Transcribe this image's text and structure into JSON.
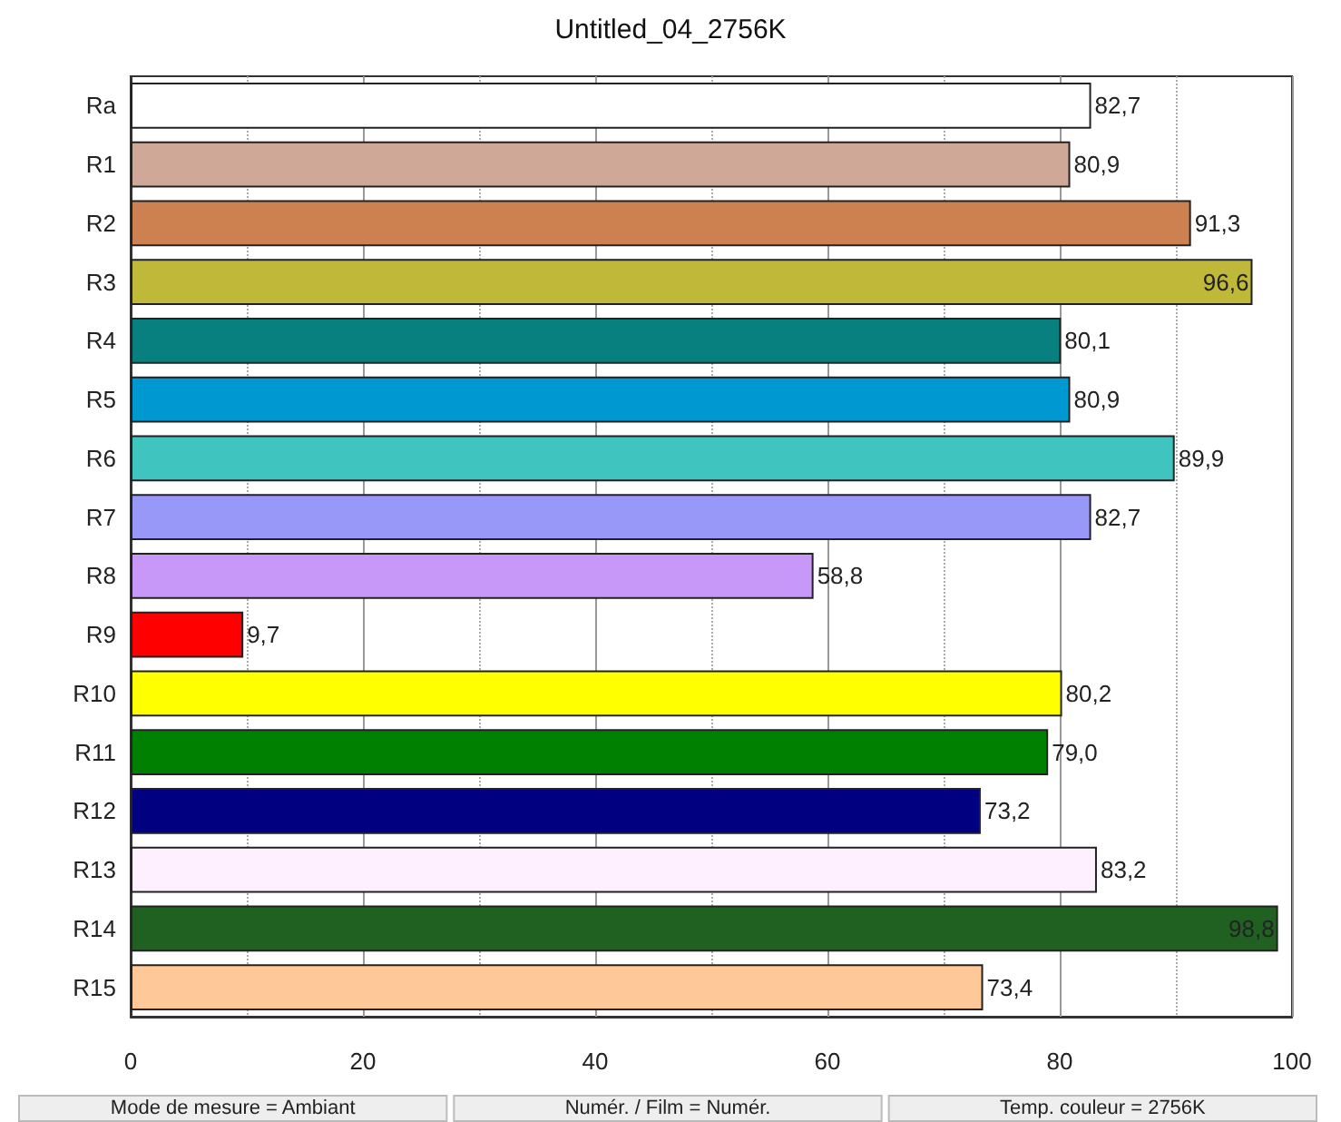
{
  "chart_data": {
    "type": "bar",
    "orientation": "horizontal",
    "title": "Untitled_04_2756K",
    "categories": [
      "Ra",
      "R1",
      "R2",
      "R3",
      "R4",
      "R5",
      "R6",
      "R7",
      "R8",
      "R9",
      "R10",
      "R11",
      "R12",
      "R13",
      "R14",
      "R15"
    ],
    "values": [
      82.7,
      80.9,
      91.3,
      96.6,
      80.1,
      80.9,
      89.9,
      82.7,
      58.8,
      9.7,
      80.2,
      79.0,
      73.2,
      83.2,
      98.8,
      73.4
    ],
    "value_labels": [
      "82,7",
      "80,9",
      "91,3",
      "96,6",
      "80,1",
      "80,9",
      "89,9",
      "82,7",
      "58,8",
      "9,7",
      "80,2",
      "79,0",
      "73,2",
      "83,2",
      "98,8",
      "73,4"
    ],
    "colors": [
      "#ffffff",
      "#cfa898",
      "#cd8050",
      "#c0b838",
      "#088080",
      "#0098d0",
      "#40c4c0",
      "#9898f8",
      "#c898f8",
      "#ff0000",
      "#ffff00",
      "#008000",
      "#000080",
      "#fff0ff",
      "#206020",
      "#ffc898"
    ],
    "xlim": [
      0,
      100
    ],
    "xticks": [
      0,
      20,
      40,
      60,
      80,
      100
    ],
    "grid": "x",
    "annotations": [
      "Mode de mesure = Ambiant",
      "Numér. / Film = Numér.",
      "Temp. couleur = 2756K"
    ]
  }
}
